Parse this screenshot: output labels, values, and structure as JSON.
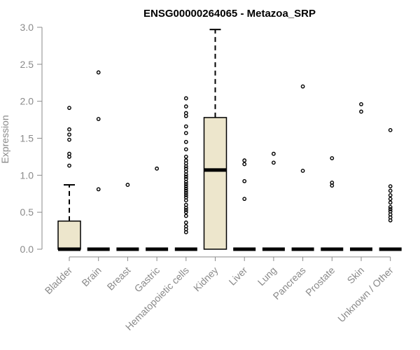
{
  "chart_data": {
    "type": "boxplot",
    "title": "ENSG00000264065 - Metazoa_SRP",
    "xlabel": "",
    "ylabel": "Expression",
    "ylim": [
      0,
      3.0
    ],
    "yticks": [
      "0.0",
      "0.5",
      "1.0",
      "1.5",
      "2.0",
      "2.5",
      "3.0"
    ],
    "box_fill": "#ede6cc",
    "categories": [
      "Bladder",
      "Brain",
      "Breast",
      "Gastric",
      "Hematopoietic cells",
      "Kidney",
      "Liver",
      "Lung",
      "Pancreas",
      "Prostate",
      "Skin",
      "Unknown / Other"
    ],
    "boxes": [
      {
        "category": "Bladder",
        "q1": 0,
        "median": 0,
        "q3": 0.38,
        "whisker_low": 0,
        "whisker_high": 0.87,
        "outliers": [
          1.13,
          1.25,
          1.29,
          1.48,
          1.55,
          1.62,
          1.91
        ]
      },
      {
        "category": "Brain",
        "q1": 0,
        "median": 0,
        "q3": 0,
        "whisker_low": 0,
        "whisker_high": 0,
        "outliers": [
          0.81,
          1.76,
          2.39
        ]
      },
      {
        "category": "Breast",
        "q1": 0,
        "median": 0,
        "q3": 0,
        "whisker_low": 0,
        "whisker_high": 0,
        "outliers": [
          0.87
        ]
      },
      {
        "category": "Gastric",
        "q1": 0,
        "median": 0,
        "q3": 0,
        "whisker_low": 0,
        "whisker_high": 0,
        "outliers": [
          1.09
        ]
      },
      {
        "category": "Hematopoietic cells",
        "q1": 0,
        "median": 0,
        "q3": 0,
        "whisker_low": 0,
        "whisker_high": 0,
        "outliers": [
          0.23,
          0.27,
          0.31,
          0.36,
          0.45,
          0.5,
          0.53,
          0.56,
          0.6,
          0.66,
          0.7,
          0.73,
          0.76,
          0.79,
          0.82,
          0.85,
          0.88,
          0.91,
          0.95,
          0.98,
          1.01,
          1.05,
          1.09,
          1.12,
          1.16,
          1.2,
          1.25,
          1.35,
          1.45,
          1.57,
          1.66,
          1.8,
          1.84,
          1.93,
          2.04
        ]
      },
      {
        "category": "Kidney",
        "q1": 0,
        "median": 1.07,
        "q3": 1.78,
        "whisker_low": 0,
        "whisker_high": 2.97,
        "outliers": []
      },
      {
        "category": "Liver",
        "q1": 0,
        "median": 0,
        "q3": 0,
        "whisker_low": 0,
        "whisker_high": 0,
        "outliers": [
          0.68,
          0.92,
          1.15,
          1.2
        ]
      },
      {
        "category": "Lung",
        "q1": 0,
        "median": 0,
        "q3": 0,
        "whisker_low": 0,
        "whisker_high": 0,
        "outliers": [
          1.17,
          1.29
        ]
      },
      {
        "category": "Pancreas",
        "q1": 0,
        "median": 0,
        "q3": 0,
        "whisker_low": 0,
        "whisker_high": 0,
        "outliers": [
          1.06,
          2.2
        ]
      },
      {
        "category": "Prostate",
        "q1": 0,
        "median": 0,
        "q3": 0,
        "whisker_low": 0,
        "whisker_high": 0,
        "outliers": [
          0.86,
          0.9,
          1.23
        ]
      },
      {
        "category": "Skin",
        "q1": 0,
        "median": 0,
        "q3": 0,
        "whisker_low": 0,
        "whisker_high": 0,
        "outliers": [
          1.86,
          1.96
        ]
      },
      {
        "category": "Unknown / Other",
        "q1": 0,
        "median": 0,
        "q3": 0,
        "whisker_low": 0,
        "whisker_high": 0,
        "outliers": [
          0.39,
          0.43,
          0.47,
          0.51,
          0.54,
          0.57,
          0.63,
          0.68,
          0.73,
          0.79,
          0.85,
          1.61
        ]
      }
    ]
  }
}
